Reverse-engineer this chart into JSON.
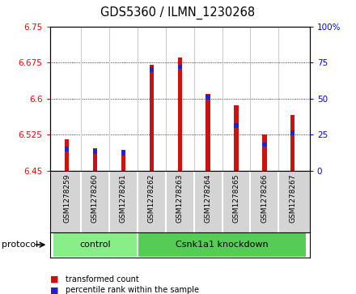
{
  "title": "GDS5360 / ILMN_1230268",
  "samples": [
    "GSM1278259",
    "GSM1278260",
    "GSM1278261",
    "GSM1278262",
    "GSM1278263",
    "GSM1278264",
    "GSM1278265",
    "GSM1278266",
    "GSM1278267"
  ],
  "transformed_count": [
    6.515,
    6.497,
    6.493,
    6.67,
    6.685,
    6.61,
    6.585,
    6.525,
    6.565
  ],
  "percentile_rank": [
    15,
    13,
    12,
    70,
    72,
    51,
    31,
    18,
    26
  ],
  "ylim_left": [
    6.45,
    6.75
  ],
  "ylim_right": [
    0,
    100
  ],
  "yticks_left": [
    6.45,
    6.525,
    6.6,
    6.675,
    6.75
  ],
  "yticks_right": [
    0,
    25,
    50,
    75,
    100
  ],
  "bar_color": "#cc1111",
  "percentile_color": "#2222cc",
  "protocol_groups": [
    {
      "label": "control",
      "indices": [
        0,
        1,
        2
      ],
      "color": "#88ee88"
    },
    {
      "label": "Csnk1a1 knockdown",
      "indices": [
        3,
        4,
        5,
        6,
        7,
        8
      ],
      "color": "#55cc55"
    }
  ],
  "protocol_label": "protocol",
  "legend_items": [
    {
      "label": "transformed count",
      "color": "#cc1111"
    },
    {
      "label": "percentile rank within the sample",
      "color": "#2222cc"
    }
  ],
  "background_color": "#ffffff",
  "plot_bg_color": "#ffffff",
  "label_bg_color": "#d4d4d4",
  "bar_width": 0.15,
  "divider_color": "#888888"
}
